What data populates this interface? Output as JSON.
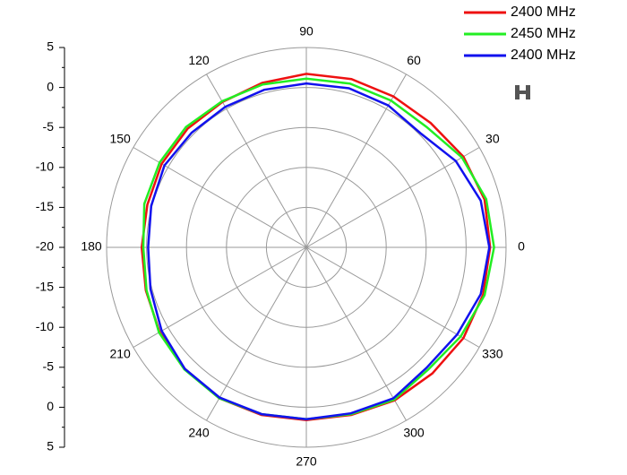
{
  "chart_data": {
    "type": "polar",
    "theta": [
      0,
      15,
      30,
      45,
      60,
      75,
      90,
      105,
      120,
      135,
      150,
      165,
      180,
      195,
      210,
      225,
      240,
      255,
      270,
      285,
      300,
      315,
      330,
      345
    ],
    "thetaticks": [
      0,
      30,
      60,
      90,
      120,
      150,
      180,
      210,
      240,
      270,
      300,
      330
    ],
    "rlim": [
      -20,
      5
    ],
    "rticks": [
      -20,
      -15,
      -10,
      -5,
      0,
      5
    ],
    "grid": true,
    "legend": "upper right",
    "series": [
      {
        "name": "2400 MHz",
        "color": "#ee1111",
        "values": [
          3.0,
          3.1,
          2.7,
          2.0,
          1.8,
          1.8,
          1.7,
          1.3,
          1.0,
          1.0,
          0.9,
          0.6,
          0.6,
          0.8,
          1.2,
          1.5,
          1.8,
          1.7,
          1.6,
          1.7,
          2.1,
          2.3,
          2.7,
          2.9
        ]
      },
      {
        "name": "2450 MHz",
        "color": "#22ee22",
        "values": [
          3.5,
          3.3,
          2.5,
          1.3,
          1.2,
          1.2,
          1.1,
          1.1,
          1.1,
          1.3,
          1.2,
          1.0,
          0.4,
          0.7,
          1.3,
          1.6,
          1.8,
          1.6,
          1.5,
          1.6,
          2.0,
          1.6,
          2.3,
          3.1
        ]
      },
      {
        "name": "2400 MHz",
        "color": "#1111ee",
        "values": [
          2.9,
          2.6,
          1.6,
          0.2,
          0.5,
          0.6,
          0.5,
          0.4,
          0.3,
          0.3,
          0.5,
          0.1,
          -0.2,
          0.2,
          0.9,
          1.5,
          1.7,
          1.6,
          1.5,
          1.5,
          1.8,
          1.3,
          1.8,
          2.6
        ]
      }
    ]
  }
}
